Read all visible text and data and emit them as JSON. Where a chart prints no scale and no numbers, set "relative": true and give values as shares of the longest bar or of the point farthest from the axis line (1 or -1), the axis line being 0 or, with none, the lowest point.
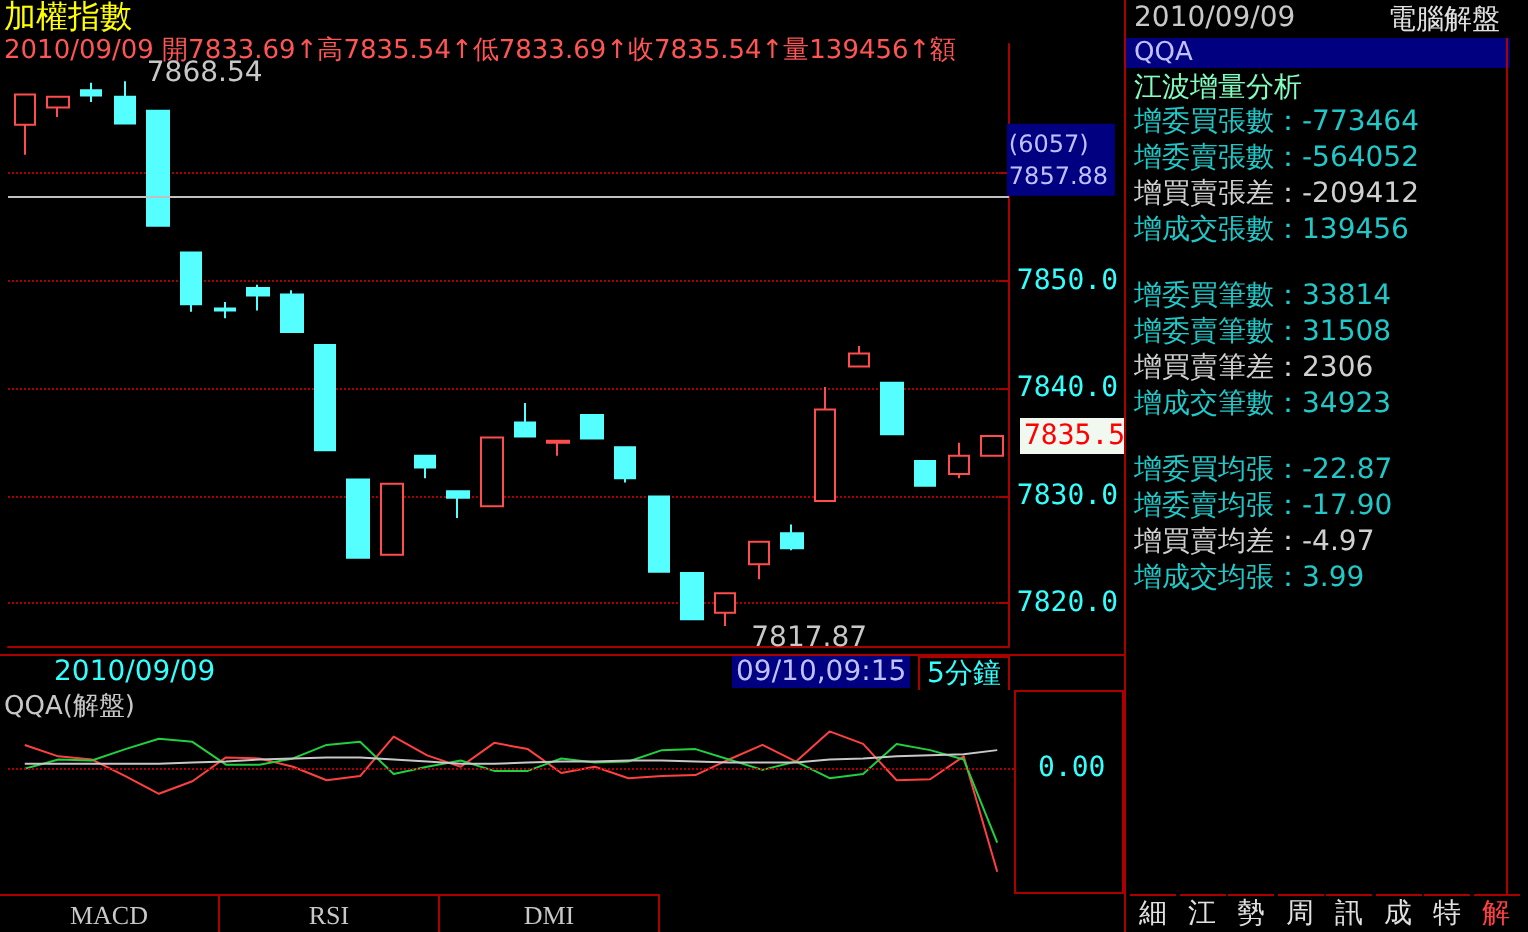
{
  "chart_data": [
    {
      "type": "candlestick",
      "title": "加權指數",
      "subtitle": "2010/09/09 開7833.69↑高7835.54↑低7833.69↑收7835.54↑量139456↑額",
      "categories": [
        null,
        null,
        null,
        null,
        null,
        null,
        null,
        null,
        null,
        null,
        null,
        null,
        null,
        null,
        null,
        null,
        null,
        null,
        null,
        null,
        null,
        null,
        null,
        null,
        null,
        null,
        null,
        null,
        null,
        null
      ],
      "ohlc": [
        [
          7864.5,
          7867.3,
          7861.7,
          7867.3
        ],
        [
          7866.1,
          7867.1,
          7865.2,
          7867.1
        ],
        [
          7867.7,
          7868.4,
          7866.6,
          7867.2
        ],
        [
          7867.1,
          7868.54,
          7864.6,
          7864.6
        ],
        [
          7865.8,
          7865.8,
          7855.1,
          7855.1
        ],
        [
          7852.6,
          7852.6,
          7847.1,
          7847.8
        ],
        [
          7847.4,
          7848.0,
          7846.5,
          7847.2
        ],
        [
          7849.3,
          7849.6,
          7847.2,
          7848.6
        ],
        [
          7848.7,
          7849.1,
          7845.2,
          7845.2
        ],
        [
          7844.0,
          7844.0,
          7834.2,
          7834.2
        ],
        [
          7831.5,
          7831.5,
          7824.2,
          7824.2
        ],
        [
          7824.5,
          7831.1,
          7824.5,
          7831.1
        ],
        [
          7833.7,
          7833.7,
          7831.6,
          7832.6
        ],
        [
          7830.4,
          7830.4,
          7827.9,
          7829.8
        ],
        [
          7829.0,
          7835.4,
          7829.0,
          7835.4
        ],
        [
          7836.8,
          7838.6,
          7835.5,
          7835.5
        ],
        [
          7835.1,
          7835.1,
          7833.7,
          7834.9
        ],
        [
          7837.5,
          7837.5,
          7835.2,
          7835.3
        ],
        [
          7834.5,
          7834.5,
          7831.2,
          7831.6
        ],
        [
          7829.9,
          7829.9,
          7822.9,
          7822.9
        ],
        [
          7822.8,
          7822.8,
          7818.5,
          7818.5
        ],
        [
          7819.1,
          7820.9,
          7817.87,
          7820.9
        ],
        [
          7823.6,
          7825.7,
          7822.2,
          7825.7
        ],
        [
          7826.5,
          7827.3,
          7824.9,
          7825.1
        ],
        [
          7829.5,
          7840.1,
          7829.5,
          7838.0
        ],
        [
          7842.0,
          7843.9,
          7842.0,
          7843.2
        ],
        [
          7840.5,
          7840.5,
          7835.7,
          7835.7
        ],
        [
          7833.2,
          7833.2,
          7830.9,
          7830.9
        ],
        [
          7832.0,
          7834.9,
          7831.6,
          7833.7
        ],
        [
          7833.69,
          7835.54,
          7833.69,
          7835.54
        ]
      ],
      "colors": [
        "#ff4d4d",
        "#ff4d4d",
        "#55ffff",
        "#55ffff",
        "#55ffff",
        "#55ffff",
        "#55ffff",
        "#55ffff",
        "#55ffff",
        "#55ffff",
        "#55ffff",
        "#ff4d4d",
        "#55ffff",
        "#55ffff",
        "#ff4d4d",
        "#55ffff",
        "#ff4d4d",
        "#55ffff",
        "#55ffff",
        "#55ffff",
        "#55ffff",
        "#ff4d4d",
        "#ff4d4d",
        "#55ffff",
        "#ff4d4d",
        "#ff4d4d",
        "#55ffff",
        "#55ffff",
        "#ff4d4d",
        "#ff4d4d"
      ],
      "ylim": [
        7816,
        7872
      ],
      "yticks": [
        {
          "value": 7820,
          "label": "7820.0"
        },
        {
          "value": 7830,
          "label": "7830.0"
        },
        {
          "value": 7840,
          "label": "7840.0"
        },
        {
          "value": 7850,
          "label": "7850.0"
        },
        {
          "value": 7860,
          "label": null
        }
      ],
      "grid": "y",
      "ref_lines": [
        {
          "axis": "y",
          "value": 7857.88,
          "label": "(6057)\n7857.88",
          "color": "#c0c0c0"
        }
      ],
      "annotations": [
        "7868.54",
        "7817.87",
        "7835.5",
        "2010/09/09",
        "09/10,09:15",
        "5分鐘"
      ]
    },
    {
      "type": "line",
      "title": "QQA(解盤)",
      "relative": true,
      "marker": "none",
      "categories": [
        null,
        null,
        null,
        null,
        null,
        null,
        null,
        null,
        null,
        null,
        null,
        null,
        null,
        null,
        null,
        null,
        null,
        null,
        null,
        null,
        null,
        null,
        null,
        null,
        null,
        null,
        null,
        null,
        null,
        null
      ],
      "series": [
        {
          "color": "#ff4040",
          "values": [
            0.22,
            0.11,
            0.08,
            -0.08,
            -0.25,
            -0.13,
            0.1,
            0.09,
            0.01,
            -0.12,
            -0.08,
            0.3,
            0.12,
            0.01,
            0.24,
            0.18,
            -0.05,
            0.01,
            -0.1,
            -0.08,
            -0.07,
            0.08,
            0.22,
            0.06,
            0.35,
            0.23,
            -0.12,
            -0.11,
            0.11,
            -1
          ]
        },
        {
          "color": "#20d040",
          "values": [
            -0.01,
            0.08,
            0.07,
            0.18,
            0.28,
            0.25,
            0.03,
            0.03,
            0.09,
            0.22,
            0.25,
            -0.06,
            0.01,
            0.07,
            -0.03,
            -0.03,
            0.09,
            0.05,
            0.06,
            0.17,
            0.18,
            0.08,
            -0.02,
            0.06,
            -0.1,
            -0.06,
            0.23,
            0.17,
            0.08,
            -0.72
          ]
        },
        {
          "color": "#c8c8c8",
          "values": [
            0.04,
            0.04,
            0.04,
            0.04,
            0.04,
            0.05,
            0.06,
            0.08,
            0.09,
            0.1,
            0.1,
            0.08,
            0.06,
            0.04,
            0.04,
            0.05,
            0.06,
            0.06,
            0.07,
            0.07,
            0.06,
            0.05,
            0.05,
            0.05,
            0.08,
            0.09,
            0.11,
            0.12,
            0.13,
            0.17
          ]
        }
      ],
      "ref_lines": [
        {
          "axis": "y",
          "value": 0,
          "label": "0.00",
          "color": "#aa0000",
          "line_style": "dotted"
        }
      ],
      "annotations": [
        "MACD",
        "RSI",
        "DMI"
      ]
    },
    {
      "type": "other",
      "title": "電腦解盤",
      "subtitle": "2010/09/09",
      "annotations": [
        "QQA",
        "江波增量分析",
        "增委買張數：-773464",
        "增委賣張數：-564052",
        "增買賣張差：-209412",
        "增成交張數：139456",
        "增委買筆數：33814",
        "增委賣筆數：31508",
        "增買賣筆差：2306",
        "增成交筆數：34923",
        "增委買均張：-22.87",
        "增委賣均張：-17.90",
        "增買賣均差：-4.97",
        "增成交均張：3.99",
        "細",
        "江",
        "勢",
        "周",
        "訊",
        "成",
        "特",
        "解"
      ]
    }
  ]
}
